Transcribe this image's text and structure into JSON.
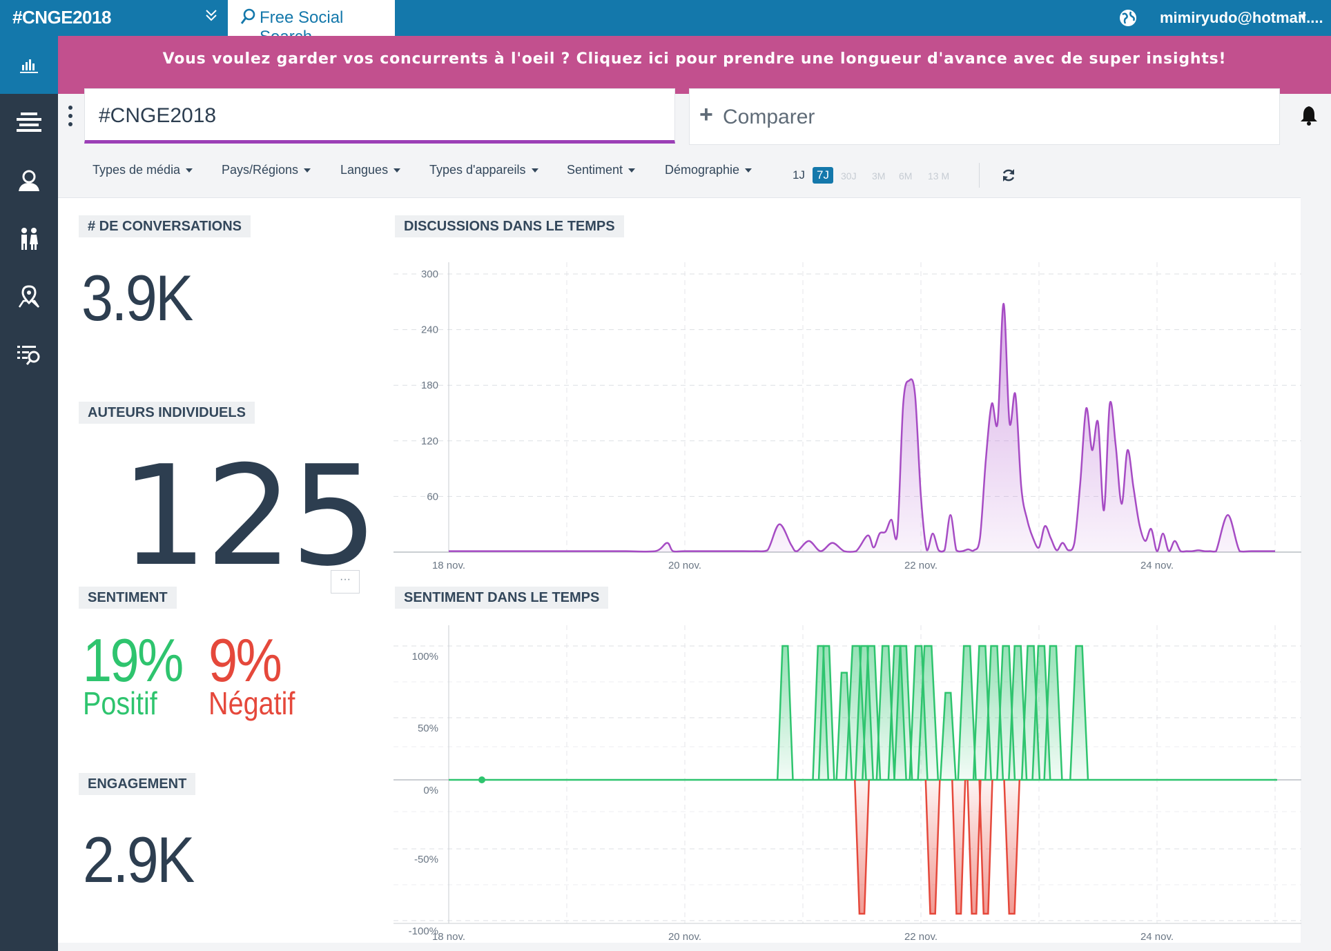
{
  "header": {
    "app_title": "#CNGE2018",
    "search_tab": "Free Social Search",
    "user_email": "mimiryudo@hotmail...."
  },
  "banner": {
    "text": "Vous voulez garder vos concurrents à l'oeil ? Cliquez ici pour prendre une longueur d'avance avec de super insights!"
  },
  "sidebar": {
    "items": [
      {
        "icon": "bar-chart-icon"
      },
      {
        "icon": "stream-icon"
      },
      {
        "icon": "author-icon"
      },
      {
        "icon": "demographics-icon"
      },
      {
        "icon": "map-pin-icon"
      },
      {
        "icon": "list-search-icon"
      }
    ]
  },
  "query": {
    "value": "#CNGE2018",
    "compare_label": "Comparer"
  },
  "filters": [
    "Types de média",
    "Pays/Régions",
    "Langues",
    "Types d'appareils",
    "Sentiment",
    "Démographie"
  ],
  "time_ranges": {
    "options": [
      "1J",
      "7J",
      "30J",
      "3M",
      "6M",
      "13 M"
    ],
    "selected": "7J"
  },
  "metrics": {
    "conversations_label": "# DE CONVERSATIONS",
    "conversations_value": "3.9K",
    "authors_label": "AUTEURS INDIVIDUELS",
    "authors_value": "125",
    "sentiment_label": "SENTIMENT",
    "positive_pct": "19%",
    "positive_label": "Positif",
    "negative_pct": "9%",
    "negative_label": "Négatif",
    "engagement_label": "ENGAGEMENT",
    "engagement_value": "2.9K",
    "more_label": "···"
  },
  "colors": {
    "topbar": "#1478ab",
    "banner": "#c2508e",
    "accent_purple": "#9b3fb6",
    "positive": "#2ec46e",
    "negative": "#e5483b",
    "sidebar": "#2b3a4a"
  },
  "chart_data": [
    {
      "type": "area",
      "title": "DISCUSSIONS DANS LE TEMPS",
      "ylim": [
        0,
        300
      ],
      "yticks": [
        300,
        240,
        180,
        120,
        60
      ],
      "xticks": [
        "18 nov.",
        "20 nov.",
        "22 nov.",
        "24 nov."
      ],
      "x": [
        0,
        0.25,
        0.5,
        0.75,
        1,
        1.25,
        1.5,
        1.75,
        1.85,
        1.9,
        2,
        2.25,
        2.5,
        2.6,
        2.7,
        2.8,
        2.9,
        2.95,
        3.05,
        3.15,
        3.25,
        3.35,
        3.45,
        3.55,
        3.6,
        3.65,
        3.7,
        3.75,
        3.8,
        3.85,
        3.9,
        3.95,
        4,
        4.05,
        4.1,
        4.15,
        4.2,
        4.25,
        4.3,
        4.35,
        4.4,
        4.45,
        4.5,
        4.55,
        4.6,
        4.65,
        4.7,
        4.75,
        4.8,
        4.85,
        4.9,
        4.95,
        5,
        5.05,
        5.1,
        5.15,
        5.2,
        5.25,
        5.3,
        5.35,
        5.4,
        5.45,
        5.5,
        5.55,
        5.6,
        5.65,
        5.7,
        5.75,
        5.8,
        5.85,
        5.9,
        5.95,
        6,
        6.05,
        6.1,
        6.15,
        6.2,
        6.25,
        6.3,
        6.35,
        6.4,
        6.45,
        6.5,
        6.6,
        6.7,
        6.8,
        7
      ],
      "series": [
        {
          "values": [
            1,
            1,
            1,
            1,
            1,
            1,
            1,
            1,
            10,
            1,
            1,
            1,
            1,
            1,
            2,
            30,
            8,
            1,
            12,
            1,
            10,
            1,
            1,
            18,
            5,
            20,
            22,
            35,
            20,
            160,
            185,
            170,
            60,
            2,
            20,
            2,
            2,
            40,
            2,
            1,
            3,
            2,
            15,
            100,
            160,
            140,
            268,
            140,
            170,
            70,
            35,
            15,
            5,
            28,
            15,
            2,
            10,
            2,
            10,
            75,
            155,
            110,
            140,
            45,
            160,
            115,
            52,
            110,
            70,
            30,
            12,
            25,
            1,
            20,
            1,
            12,
            1,
            1,
            1,
            2,
            1,
            1,
            1,
            40,
            1,
            1,
            1
          ]
        }
      ]
    },
    {
      "type": "area",
      "title": "SENTIMENT DANS LE TEMPS",
      "ylim": [
        -100,
        100
      ],
      "yticks": [
        "100%",
        "50%",
        "0%",
        "-50%",
        "-100%"
      ],
      "xticks": [
        "18 nov.",
        "20 nov.",
        "22 nov.",
        "24 nov."
      ]
    }
  ]
}
